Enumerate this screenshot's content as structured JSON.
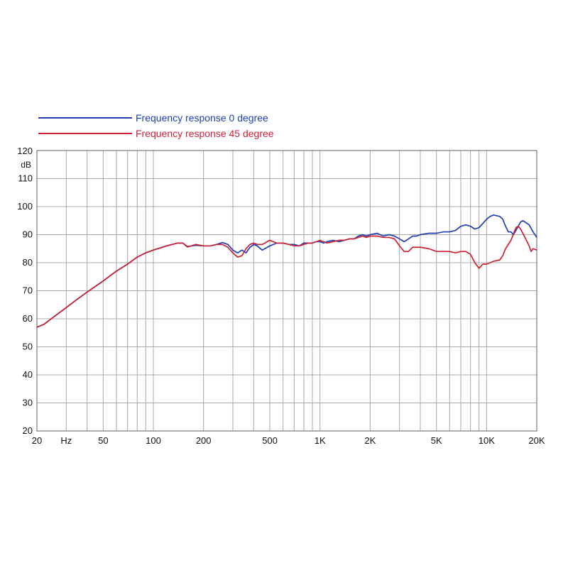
{
  "chart_data": {
    "type": "line",
    "xscale": "log",
    "xlim": [
      20,
      20000
    ],
    "ylim": [
      20,
      120
    ],
    "ylabel": "dB",
    "xunit_label": "Hz",
    "grid": true,
    "legend_position": "top-left",
    "y_ticks": [
      {
        "value": 20,
        "label": "20"
      },
      {
        "value": 30,
        "label": "30"
      },
      {
        "value": 40,
        "label": "40"
      },
      {
        "value": 50,
        "label": "50"
      },
      {
        "value": 60,
        "label": "60"
      },
      {
        "value": 70,
        "label": "70"
      },
      {
        "value": 80,
        "label": "80"
      },
      {
        "value": 90,
        "label": "90"
      },
      {
        "value": 100,
        "label": "100"
      },
      {
        "value": 110,
        "label": "110"
      },
      {
        "value": 120,
        "label": "120"
      }
    ],
    "x_ticks": [
      {
        "value": 20,
        "label": "20"
      },
      {
        "value": 50,
        "label": "50"
      },
      {
        "value": 100,
        "label": "100"
      },
      {
        "value": 200,
        "label": "200"
      },
      {
        "value": 500,
        "label": "500"
      },
      {
        "value": 1000,
        "label": "1K"
      },
      {
        "value": 2000,
        "label": "2K"
      },
      {
        "value": 5000,
        "label": "5K"
      },
      {
        "value": 10000,
        "label": "10K"
      },
      {
        "value": 20000,
        "label": "20K"
      }
    ],
    "x_grid": [
      20,
      30,
      40,
      50,
      60,
      70,
      80,
      90,
      100,
      200,
      300,
      400,
      500,
      600,
      700,
      800,
      900,
      1000,
      2000,
      3000,
      4000,
      5000,
      6000,
      7000,
      8000,
      9000,
      10000,
      20000
    ],
    "series": [
      {
        "name": "Frequency response 0 degree",
        "color": "#1f3fb0",
        "points": [
          [
            20,
            57
          ],
          [
            22,
            58
          ],
          [
            25,
            60.5
          ],
          [
            30,
            64
          ],
          [
            35,
            67
          ],
          [
            40,
            69.5
          ],
          [
            50,
            73.5
          ],
          [
            60,
            77
          ],
          [
            70,
            79.5
          ],
          [
            80,
            82
          ],
          [
            90,
            83.5
          ],
          [
            100,
            84.5
          ],
          [
            120,
            86
          ],
          [
            140,
            87
          ],
          [
            150,
            87
          ],
          [
            160,
            85.8
          ],
          [
            180,
            86.2
          ],
          [
            200,
            86
          ],
          [
            220,
            86
          ],
          [
            240,
            86.5
          ],
          [
            260,
            87.2
          ],
          [
            280,
            86.5
          ],
          [
            300,
            84.5
          ],
          [
            320,
            83.5
          ],
          [
            340,
            84.5
          ],
          [
            360,
            83.5
          ],
          [
            380,
            85.5
          ],
          [
            400,
            86.5
          ],
          [
            420,
            86
          ],
          [
            450,
            84.5
          ],
          [
            500,
            86
          ],
          [
            550,
            87
          ],
          [
            600,
            87
          ],
          [
            650,
            86.5
          ],
          [
            700,
            86.5
          ],
          [
            750,
            86
          ],
          [
            800,
            87
          ],
          [
            850,
            87
          ],
          [
            900,
            87
          ],
          [
            950,
            87.5
          ],
          [
            1000,
            87.5
          ],
          [
            1050,
            87
          ],
          [
            1100,
            87.5
          ],
          [
            1200,
            88
          ],
          [
            1300,
            87.5
          ],
          [
            1400,
            88
          ],
          [
            1500,
            88.5
          ],
          [
            1600,
            88.5
          ],
          [
            1700,
            89.5
          ],
          [
            1800,
            90
          ],
          [
            1900,
            89.5
          ],
          [
            2000,
            90
          ],
          [
            2200,
            90.5
          ],
          [
            2400,
            89.5
          ],
          [
            2600,
            90
          ],
          [
            2800,
            89.5
          ],
          [
            3000,
            88.5
          ],
          [
            3200,
            87.5
          ],
          [
            3400,
            88.5
          ],
          [
            3600,
            89.5
          ],
          [
            3800,
            89.5
          ],
          [
            4000,
            90
          ],
          [
            4500,
            90.5
          ],
          [
            5000,
            90.5
          ],
          [
            5500,
            91
          ],
          [
            6000,
            91
          ],
          [
            6500,
            91.5
          ],
          [
            7000,
            93
          ],
          [
            7500,
            93.5
          ],
          [
            8000,
            93
          ],
          [
            8500,
            92
          ],
          [
            9000,
            92.5
          ],
          [
            9500,
            94
          ],
          [
            10000,
            95.5
          ],
          [
            10500,
            96.5
          ],
          [
            11000,
            97
          ],
          [
            12000,
            96.5
          ],
          [
            12500,
            95.5
          ],
          [
            13000,
            93
          ],
          [
            13500,
            91
          ],
          [
            14000,
            91
          ],
          [
            14500,
            90
          ],
          [
            15000,
            91.5
          ],
          [
            16000,
            94.5
          ],
          [
            16500,
            95
          ],
          [
            17000,
            94.5
          ],
          [
            18000,
            93.5
          ],
          [
            19000,
            91
          ],
          [
            20000,
            89
          ]
        ]
      },
      {
        "name": "Frequency response 45 degree",
        "color": "#cc2233",
        "points": [
          [
            20,
            57
          ],
          [
            22,
            58
          ],
          [
            25,
            60.5
          ],
          [
            30,
            64
          ],
          [
            35,
            67
          ],
          [
            40,
            69.5
          ],
          [
            50,
            73.5
          ],
          [
            60,
            77
          ],
          [
            70,
            79.5
          ],
          [
            80,
            82
          ],
          [
            90,
            83.5
          ],
          [
            100,
            84.5
          ],
          [
            120,
            86
          ],
          [
            140,
            87
          ],
          [
            150,
            87
          ],
          [
            160,
            85.6
          ],
          [
            180,
            86.5
          ],
          [
            200,
            86
          ],
          [
            220,
            86
          ],
          [
            240,
            86.5
          ],
          [
            260,
            86.5
          ],
          [
            280,
            85.5
          ],
          [
            300,
            83.5
          ],
          [
            320,
            82
          ],
          [
            340,
            82.5
          ],
          [
            360,
            85
          ],
          [
            380,
            86.5
          ],
          [
            400,
            87
          ],
          [
            420,
            86.5
          ],
          [
            450,
            86.5
          ],
          [
            500,
            88
          ],
          [
            550,
            87
          ],
          [
            600,
            87
          ],
          [
            650,
            86.5
          ],
          [
            700,
            86
          ],
          [
            750,
            86
          ],
          [
            800,
            86.5
          ],
          [
            850,
            87
          ],
          [
            900,
            87
          ],
          [
            950,
            87.5
          ],
          [
            1000,
            88
          ],
          [
            1050,
            87.5
          ],
          [
            1100,
            87
          ],
          [
            1200,
            87.5
          ],
          [
            1300,
            88
          ],
          [
            1400,
            88
          ],
          [
            1500,
            88.5
          ],
          [
            1600,
            88.5
          ],
          [
            1700,
            89
          ],
          [
            1800,
            89.5
          ],
          [
            1900,
            89
          ],
          [
            2000,
            89.5
          ],
          [
            2200,
            89.5
          ],
          [
            2400,
            89
          ],
          [
            2600,
            89
          ],
          [
            2800,
            88.5
          ],
          [
            3000,
            86
          ],
          [
            3200,
            84
          ],
          [
            3400,
            84
          ],
          [
            3600,
            85.5
          ],
          [
            3800,
            85.5
          ],
          [
            4000,
            85.5
          ],
          [
            4500,
            85
          ],
          [
            5000,
            84
          ],
          [
            5500,
            84
          ],
          [
            6000,
            84
          ],
          [
            6500,
            83.5
          ],
          [
            7000,
            84
          ],
          [
            7500,
            84
          ],
          [
            8000,
            83
          ],
          [
            8500,
            80
          ],
          [
            9000,
            78
          ],
          [
            9500,
            79.5
          ],
          [
            10000,
            79.5
          ],
          [
            10500,
            80
          ],
          [
            11000,
            80.5
          ],
          [
            12000,
            81
          ],
          [
            12500,
            82.5
          ],
          [
            13000,
            85
          ],
          [
            14000,
            88
          ],
          [
            15000,
            92.5
          ],
          [
            15500,
            93
          ],
          [
            16000,
            92
          ],
          [
            17000,
            89
          ],
          [
            18000,
            86
          ],
          [
            18500,
            84
          ],
          [
            19000,
            85
          ],
          [
            20000,
            84.5
          ]
        ]
      }
    ]
  }
}
